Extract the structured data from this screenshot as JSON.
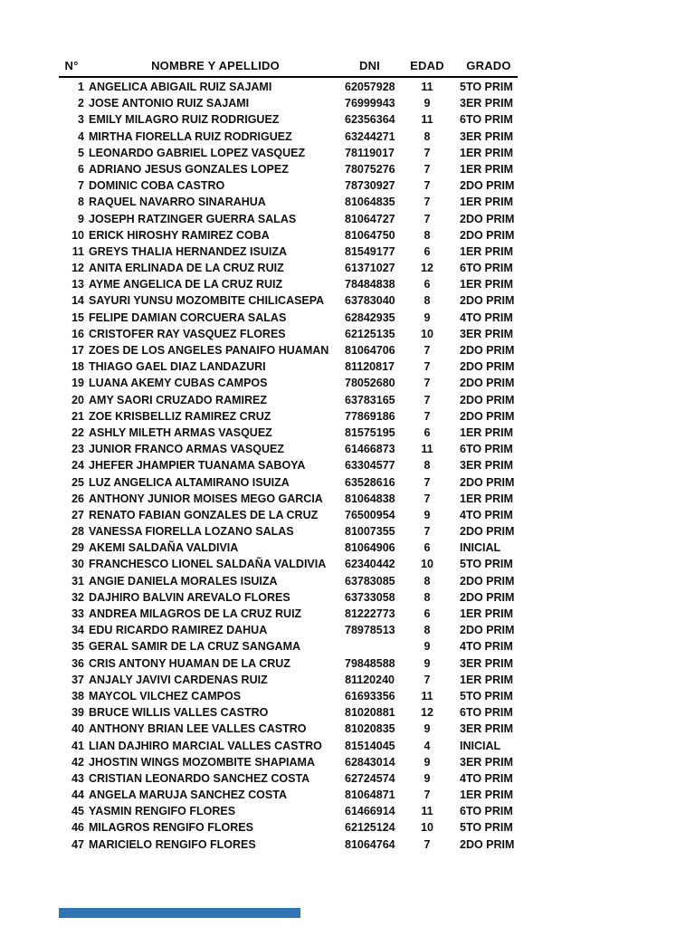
{
  "table": {
    "headers": [
      "N°",
      "NOMBRE Y APELLIDO",
      "DNI",
      "EDAD",
      "GRADO"
    ],
    "rows": [
      [
        "1",
        "ANGELICA ABIGAIL RUIZ SAJAMI",
        "62057928",
        "11",
        "5TO PRIM"
      ],
      [
        "2",
        "JOSE ANTONIO RUIZ SAJAMI",
        "76999943",
        "9",
        "3ER PRIM"
      ],
      [
        "3",
        "EMILY MILAGRO RUIZ RODRIGUEZ",
        "62356364",
        "11",
        "6TO PRIM"
      ],
      [
        "4",
        "MIRTHA FIORELLA RUIZ RODRIGUEZ",
        "63244271",
        "8",
        "3ER PRIM"
      ],
      [
        "5",
        "LEONARDO GABRIEL LOPEZ VASQUEZ",
        "78119017",
        "7",
        "1ER PRIM"
      ],
      [
        "6",
        "ADRIANO JESUS GONZALES LOPEZ",
        "78075276",
        "7",
        "1ER PRIM"
      ],
      [
        "7",
        "DOMINIC COBA CASTRO",
        "78730927",
        "7",
        "2DO PRIM"
      ],
      [
        "8",
        "RAQUEL NAVARRO SINARAHUA",
        "81064835",
        "7",
        "1ER PRIM"
      ],
      [
        "9",
        "JOSEPH RATZINGER GUERRA SALAS",
        "81064727",
        "7",
        "2DO PRIM"
      ],
      [
        "10",
        "ERICK HIROSHY RAMIREZ COBA",
        "81064750",
        "8",
        "2DO PRIM"
      ],
      [
        "11",
        "GREYS THALIA HERNANDEZ ISUIZA",
        "81549177",
        "6",
        "1ER PRIM"
      ],
      [
        "12",
        "ANITA ERLINADA DE LA CRUZ RUIZ",
        "61371027",
        "12",
        "6TO PRIM"
      ],
      [
        "13",
        "AYME ANGELICA DE LA CRUZ RUIZ",
        "78484838",
        "6",
        "1ER PRIM"
      ],
      [
        "14",
        "SAYURI YUNSU MOZOMBITE CHILICASEPA",
        "63783040",
        "8",
        "2DO PRIM"
      ],
      [
        "15",
        "FELIPE DAMIAN CORCUERA SALAS",
        "62842935",
        "9",
        "4TO PRIM"
      ],
      [
        "16",
        "CRISTOFER RAY VASQUEZ FLORES",
        "62125135",
        "10",
        "3ER PRIM"
      ],
      [
        "17",
        "ZOES DE LOS ANGELES PANAIFO HUAMAN",
        "81064706",
        "7",
        "2DO PRIM"
      ],
      [
        "18",
        "THIAGO GAEL DIAZ LANDAZURI",
        "81120817",
        "7",
        "2DO PRIM"
      ],
      [
        "19",
        "LUANA AKEMY CUBAS CAMPOS",
        "78052680",
        "7",
        "2DO PRIM"
      ],
      [
        "20",
        "AMY SAORI CRUZADO RAMIREZ",
        "63783165",
        "7",
        "2DO PRIM"
      ],
      [
        "21",
        "ZOE KRISBELLIZ RAMIREZ CRUZ",
        "77869186",
        "7",
        "2DO PRIM"
      ],
      [
        "22",
        "ASHLY MILETH ARMAS VASQUEZ",
        "81575195",
        "6",
        "1ER PRIM"
      ],
      [
        "23",
        "JUNIOR FRANCO ARMAS VASQUEZ",
        "61466873",
        "11",
        "6TO PRIM"
      ],
      [
        "24",
        "JHEFER JHAMPIER TUANAMA SABOYA",
        "63304577",
        "8",
        "3ER PRIM"
      ],
      [
        "25",
        "LUZ ANGELICA ALTAMIRANO ISUIZA",
        "63528616",
        "7",
        "2DO PRIM"
      ],
      [
        "26",
        "ANTHONY JUNIOR MOISES MEGO GARCIA",
        "81064838",
        "7",
        "1ER PRIM"
      ],
      [
        "27",
        "RENATO FABIAN GONZALES DE LA CRUZ",
        "76500954",
        "9",
        "4TO PRIM"
      ],
      [
        "28",
        "VANESSA FIORELLA LOZANO SALAS",
        "81007355",
        "7",
        "2DO PRIM"
      ],
      [
        "29",
        "AKEMI SALDAÑA VALDIVIA",
        "81064906",
        "6",
        "INICIAL"
      ],
      [
        "30",
        "FRANCHESCO LIONEL SALDAÑA VALDIVIA",
        "62340442",
        "10",
        "5TO PRIM"
      ],
      [
        "31",
        "ANGIE DANIELA MORALES ISUIZA",
        "63783085",
        "8",
        "2DO PRIM"
      ],
      [
        "32",
        "DAJHIRO BALVIN AREVALO FLORES",
        "63733058",
        "8",
        "2DO PRIM"
      ],
      [
        "33",
        "ANDREA MILAGROS DE LA CRUZ RUIZ",
        "81222773",
        "6",
        "1ER PRIM"
      ],
      [
        "34",
        "EDU RICARDO RAMIREZ DAHUA",
        "78978513",
        "8",
        "2DO PRIM"
      ],
      [
        "35",
        "GERAL SAMIR DE LA CRUZ SANGAMA",
        "",
        "9",
        "4TO PRIM"
      ],
      [
        "36",
        "CRIS ANTONY HUAMAN DE LA CRUZ",
        "79848588",
        "9",
        "3ER PRIM"
      ],
      [
        "37",
        "ANJALY JAVIVI CARDENAS RUIZ",
        "81120240",
        "7",
        "1ER PRIM"
      ],
      [
        "38",
        "MAYCOL VILCHEZ CAMPOS",
        "61693356",
        "11",
        "5TO PRIM"
      ],
      [
        "39",
        "BRUCE WILLIS VALLES CASTRO",
        "81020881",
        "12",
        "6TO PRIM"
      ],
      [
        "40",
        "ANTHONY BRIAN LEE VALLES CASTRO",
        "81020835",
        "9",
        "3ER PRIM"
      ],
      [
        "41",
        "LIAN DAJHIRO MARCIAL VALLES CASTRO",
        "81514045",
        "4",
        "INICIAL"
      ],
      [
        "42",
        "JHOSTIN WINGS MOZOMBITE SHAPIAMA",
        "62843014",
        "9",
        "3ER PRIM"
      ],
      [
        "43",
        "CRISTIAN LEONARDO SANCHEZ COSTA",
        "62724574",
        "9",
        "4TO PRIM"
      ],
      [
        "44",
        "ANGELA MARUJA SANCHEZ COSTA",
        "81064871",
        "7",
        "1ER PRIM"
      ],
      [
        "45",
        "YASMIN RENGIFO FLORES",
        "61466914",
        "11",
        "6TO PRIM"
      ],
      [
        "46",
        "MILAGROS RENGIFO FLORES",
        "62125124",
        "10",
        "5TO PRIM"
      ],
      [
        "47",
        "MARICIELO RENGIFO FLORES",
        "81064764",
        "7",
        "2DO PRIM"
      ]
    ]
  },
  "footer": {
    "accent_color": "#2e75b6"
  }
}
